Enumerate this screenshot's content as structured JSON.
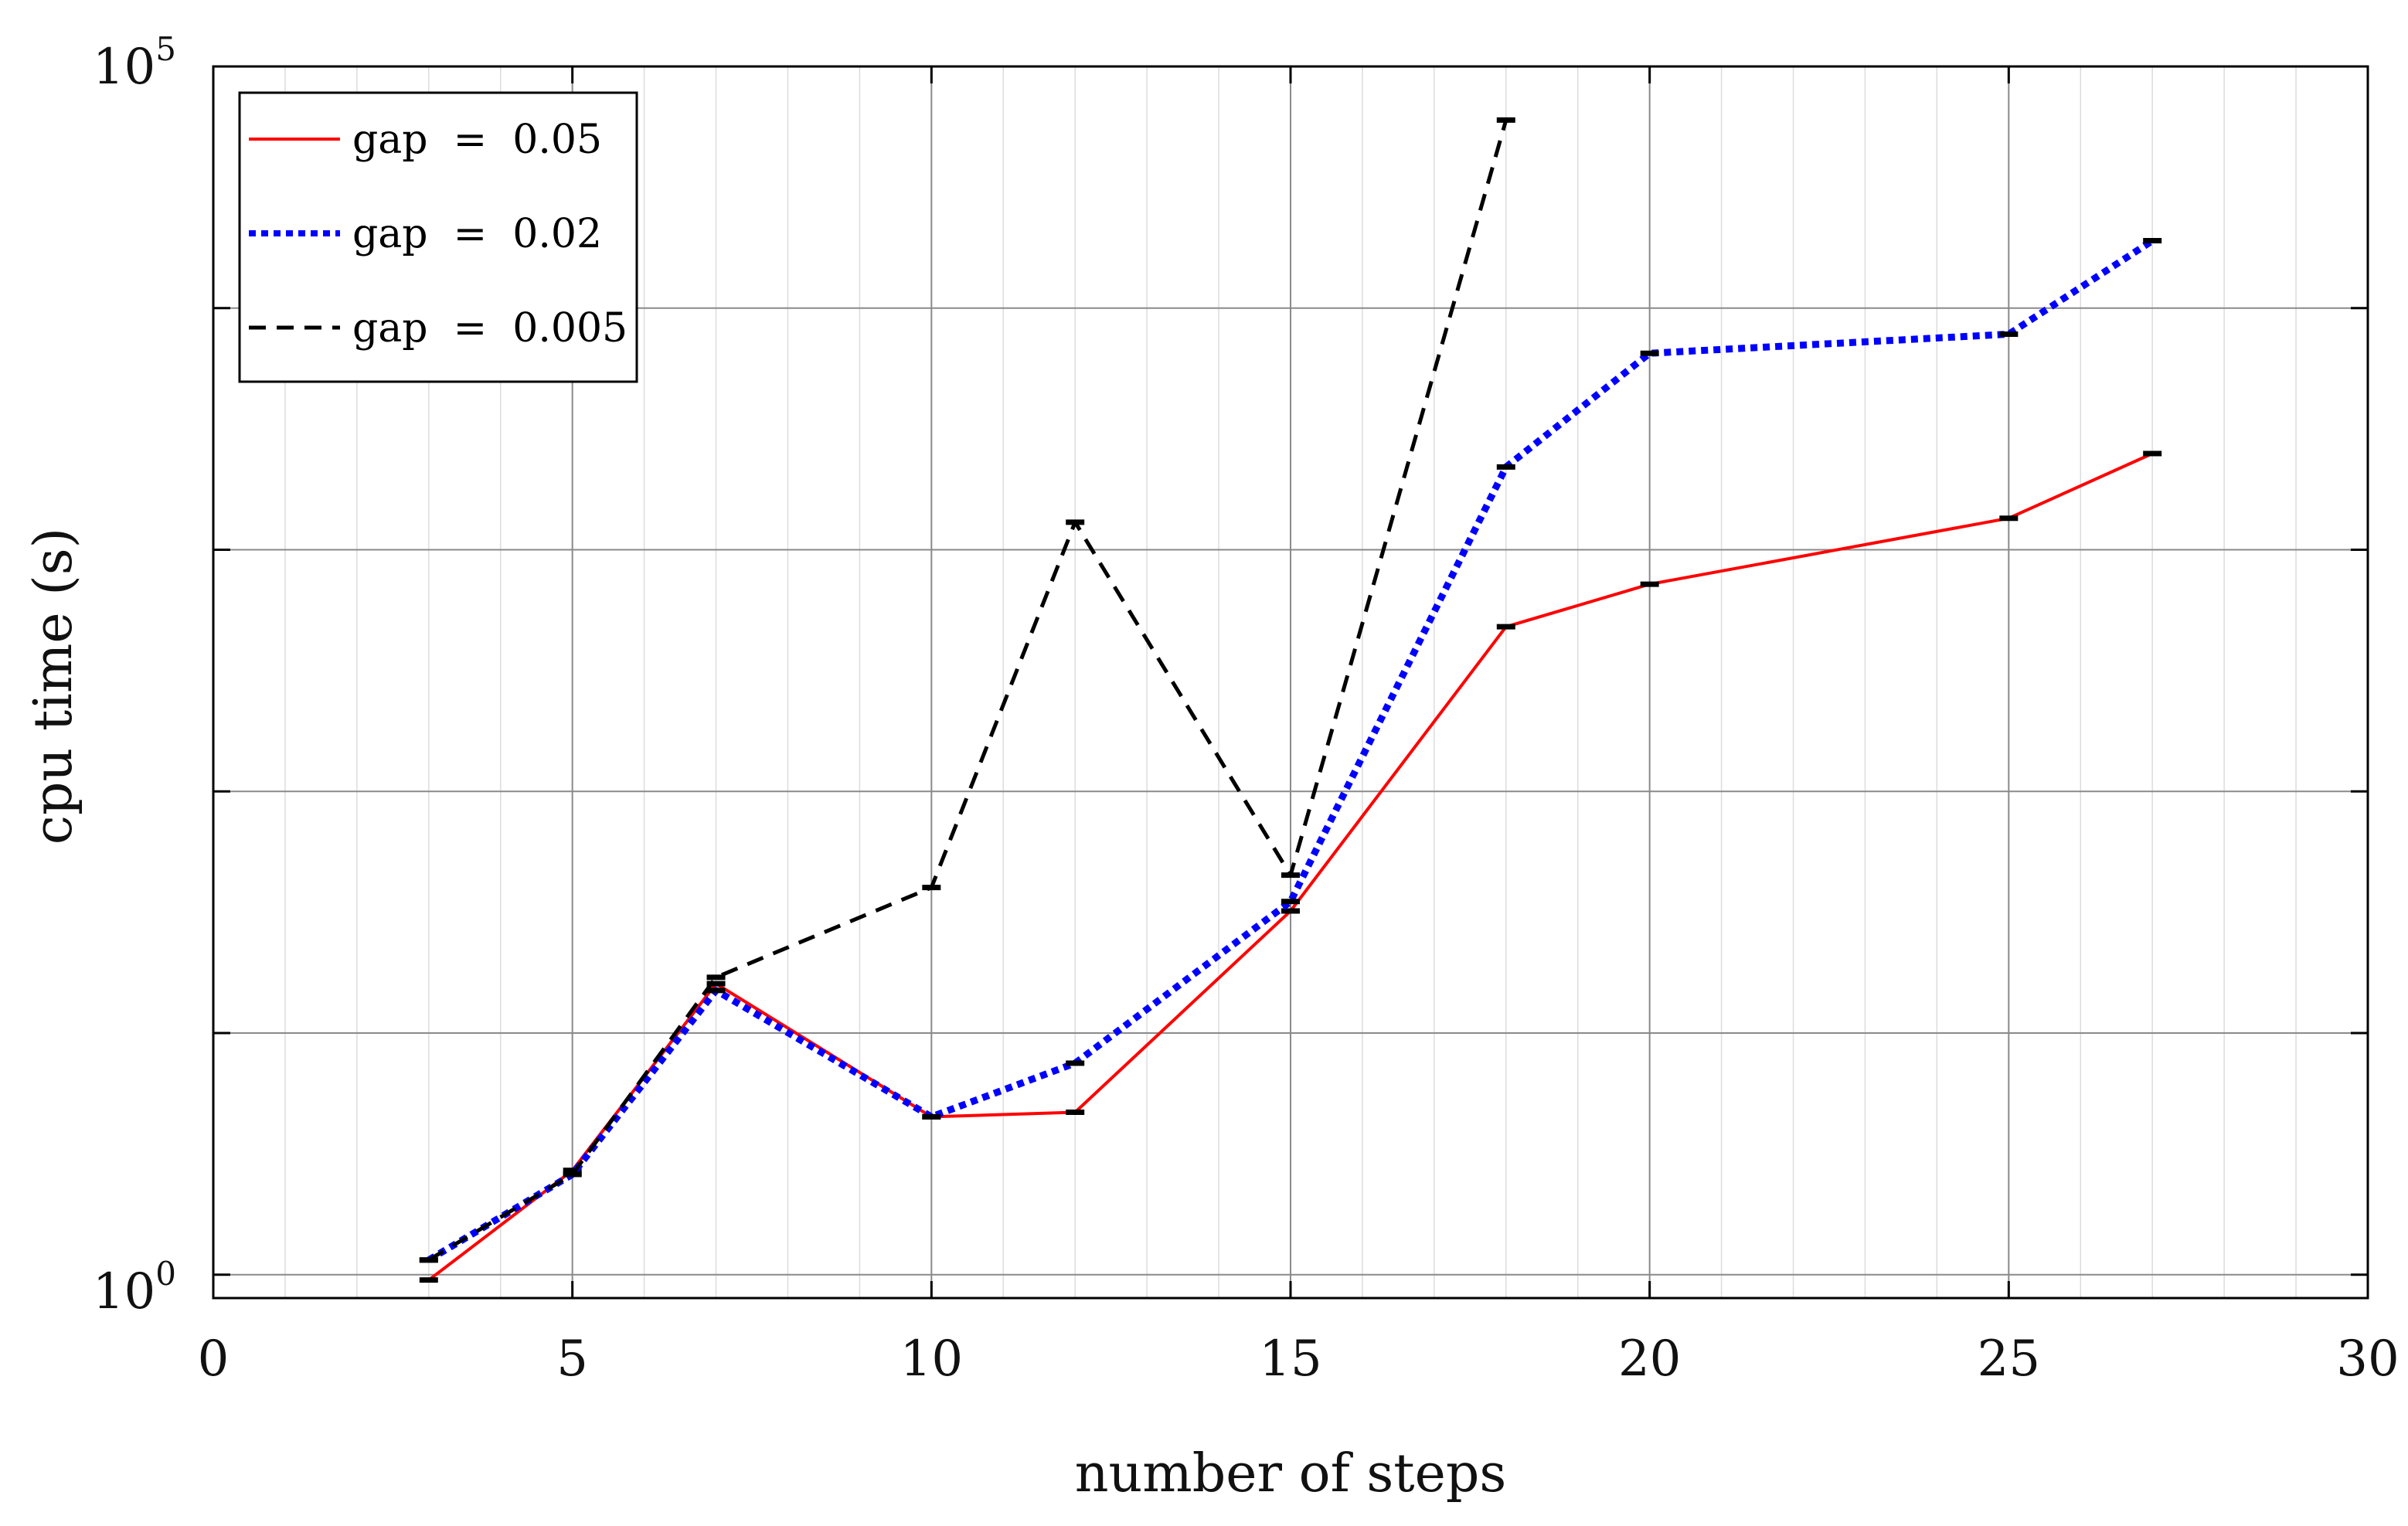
{
  "chart_data": {
    "type": "line",
    "title": "",
    "xlabel": "number of steps",
    "ylabel": "cpu time (s)",
    "xlim": [
      0,
      30
    ],
    "ylim": [
      0.8,
      100000
    ],
    "y_scale": "log",
    "x_ticks": [
      0,
      5,
      10,
      15,
      20,
      25,
      30
    ],
    "x_tick_labels": [
      "0",
      "5",
      "10",
      "15",
      "20",
      "25",
      "30"
    ],
    "y_ticks": [
      1,
      10,
      100,
      1000,
      10000,
      100000
    ],
    "y_tick_labels": [
      {
        "base": "10",
        "exp": "0"
      },
      {
        "base": "10",
        "exp": "5"
      }
    ],
    "grid": true,
    "minor_grid": true,
    "legend_position": "top-left",
    "series": [
      {
        "name": "gap  =  0.05",
        "color": "#ff0000",
        "line_style": "solid",
        "x": [
          3,
          5,
          7,
          10,
          12,
          15,
          18,
          20,
          25,
          27
        ],
        "y": [
          0.95,
          2.7,
          16,
          4.5,
          4.7,
          32,
          480,
          720,
          1350,
          2500
        ]
      },
      {
        "name": "gap  =  0.02",
        "color": "#0000ff",
        "line_style": "dotted",
        "x": [
          3,
          5,
          7,
          10,
          12,
          15,
          18,
          20,
          25,
          27
        ],
        "y": [
          1.15,
          2.6,
          15,
          4.5,
          7.5,
          35,
          2200,
          6500,
          7800,
          19000
        ]
      },
      {
        "name": "gap  =  0.005",
        "color": "#000000",
        "line_style": "dashed",
        "x": [
          3,
          5,
          7,
          10,
          12,
          15,
          18
        ],
        "y": [
          1.15,
          2.6,
          17,
          40,
          1300,
          45,
          60000
        ]
      }
    ]
  }
}
